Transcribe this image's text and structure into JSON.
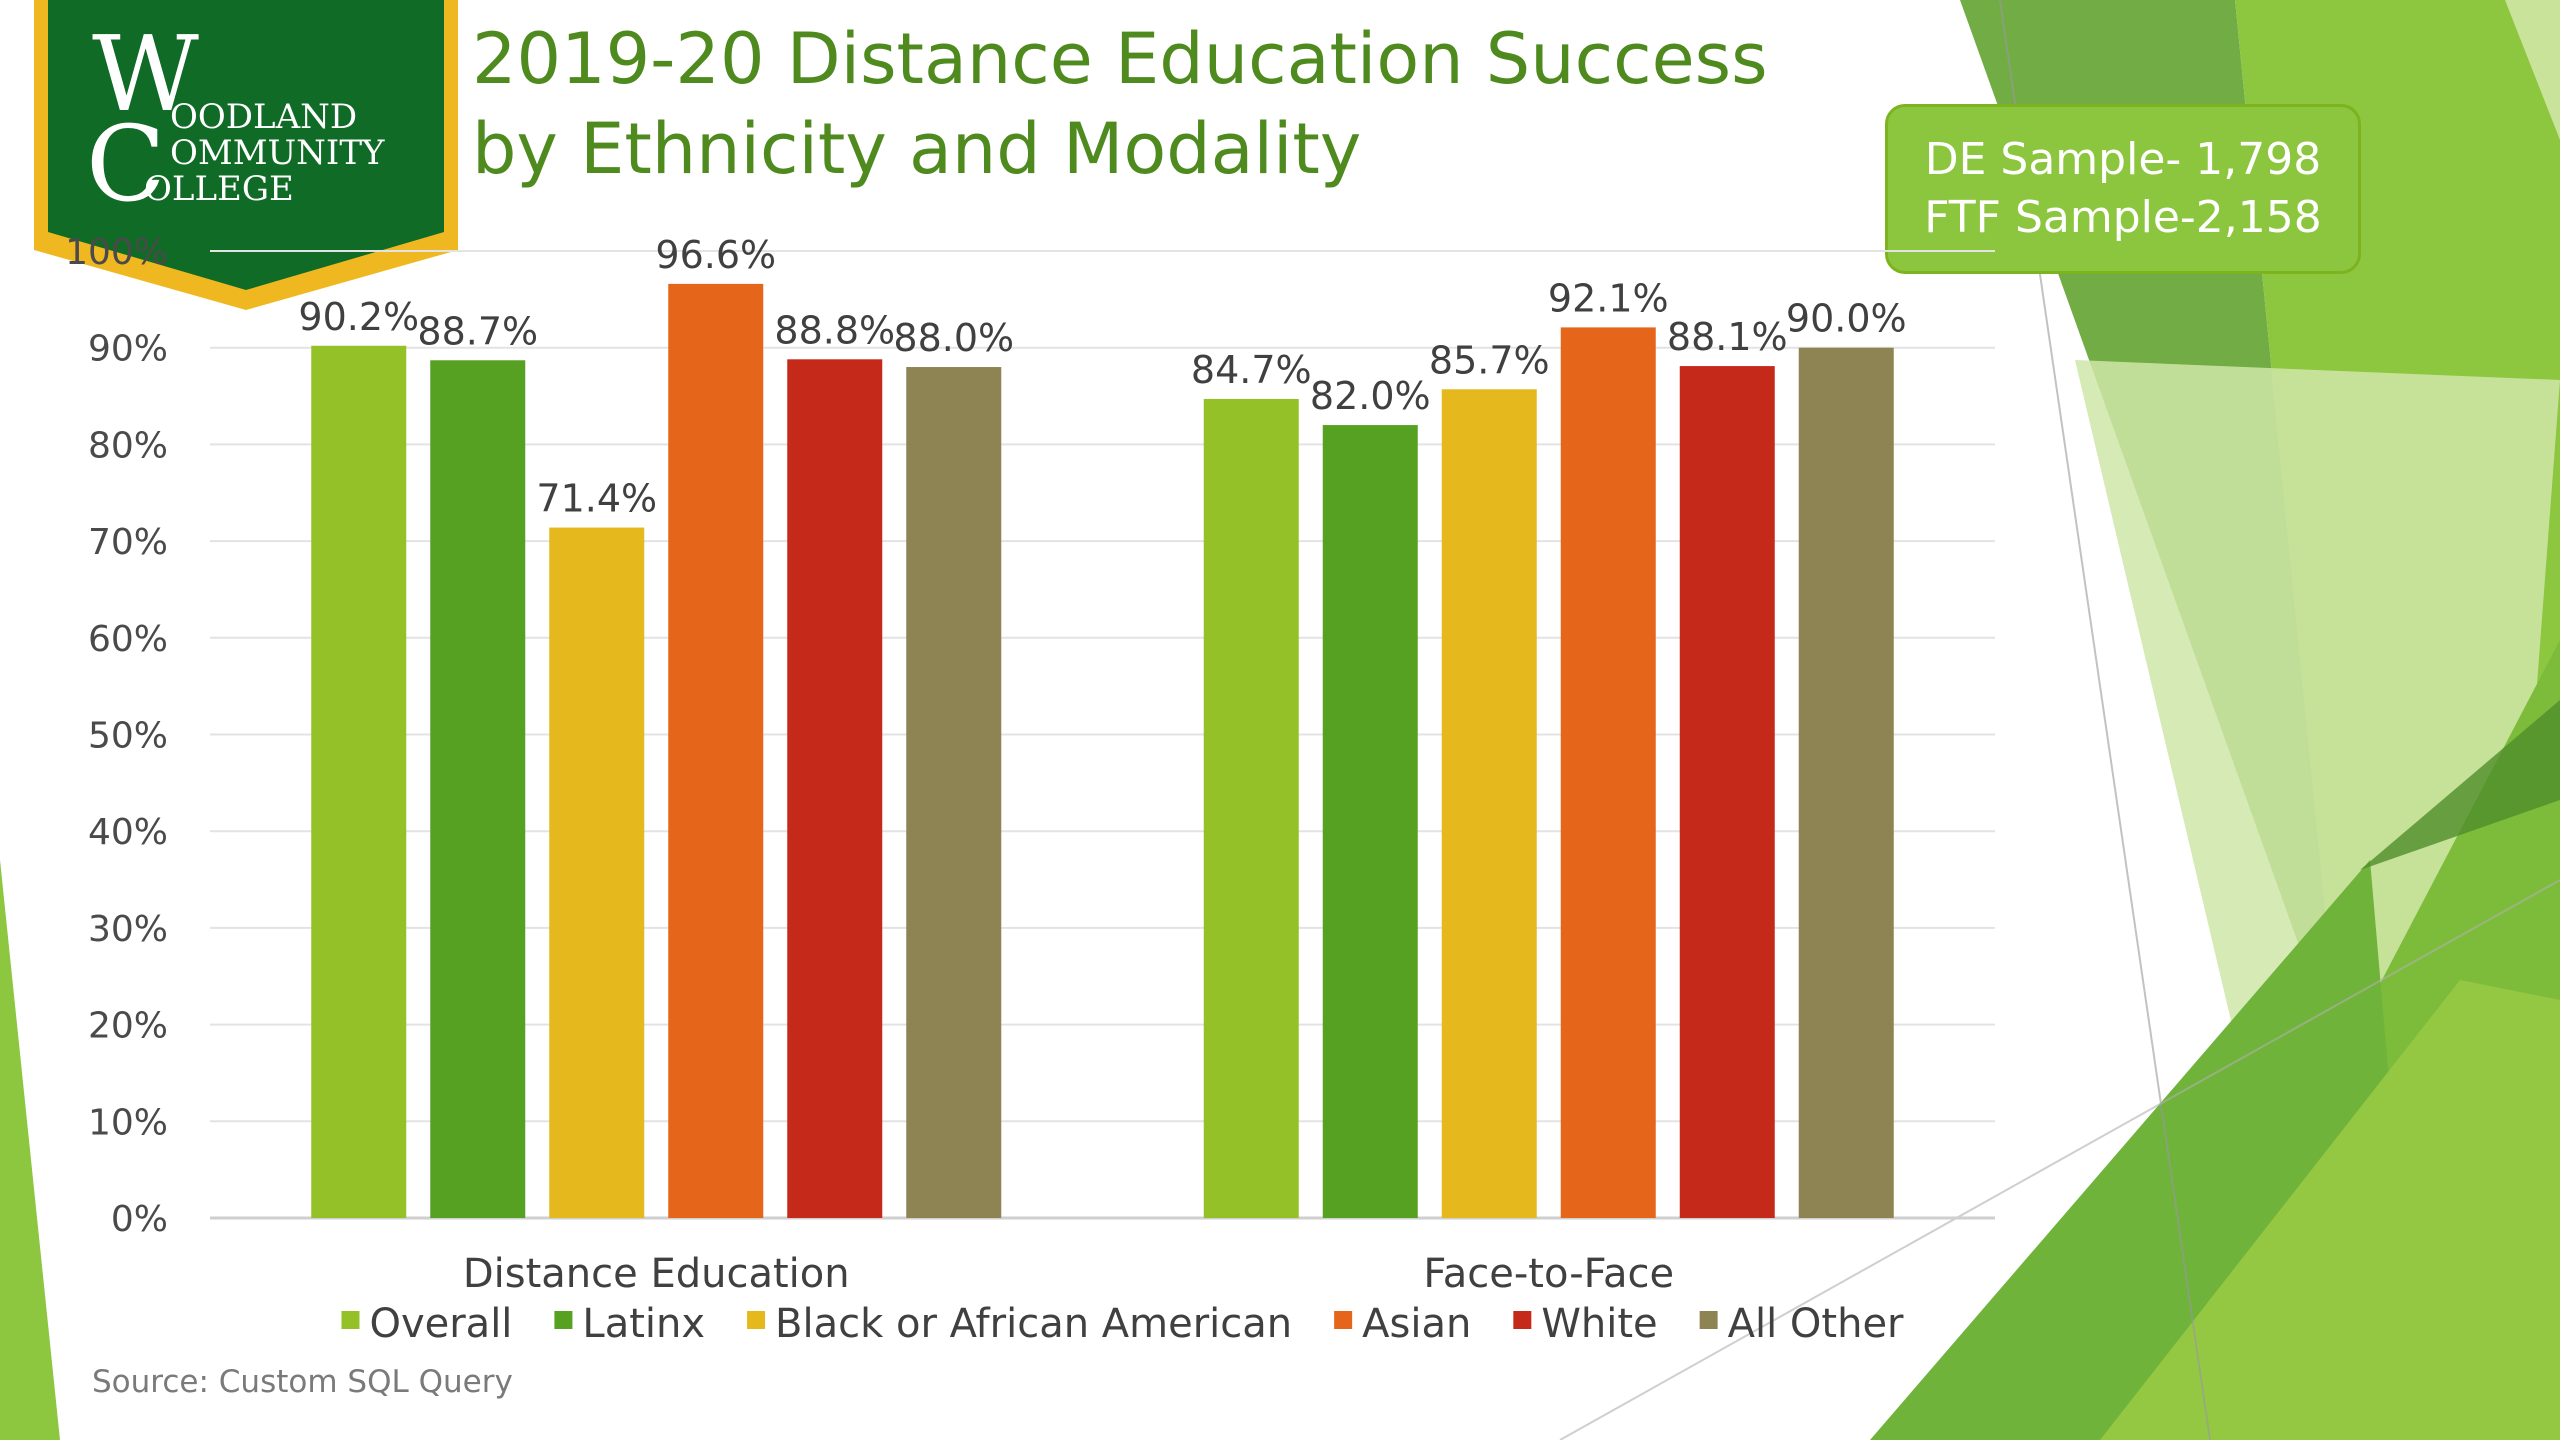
{
  "title": {
    "line1": "2019-20 Distance Education Success",
    "line2": "by Ethnicity and Modality"
  },
  "logo": {
    "line1": "OODLAND",
    "line2": "OMMUNITY",
    "line3": "OLLEGE"
  },
  "sample_box": {
    "line1": "DE Sample- 1,798",
    "line2": "FTF Sample-2,158"
  },
  "source": "Source: Custom SQL Query",
  "colors": {
    "title": "#4f8a1f",
    "logo_green": "#0f6b26",
    "logo_gold": "#f0b820",
    "box_fill": "#8cc63f"
  },
  "chart_data": {
    "type": "bar",
    "categories": [
      "Distance Education",
      "Face-to-Face"
    ],
    "series": [
      {
        "name": "Overall",
        "color": "#93c127",
        "values": [
          90.2,
          84.7
        ]
      },
      {
        "name": "Latinx",
        "color": "#56a022",
        "values": [
          88.7,
          82.0
        ]
      },
      {
        "name": "Black or African American",
        "color": "#e5b81e",
        "values": [
          71.4,
          85.7
        ]
      },
      {
        "name": "Asian",
        "color": "#e5661a",
        "values": [
          96.6,
          92.1
        ]
      },
      {
        "name": "White",
        "color": "#c5291a",
        "values": [
          88.8,
          88.1
        ]
      },
      {
        "name": "All Other",
        "color": "#8e8353",
        "values": [
          88.0,
          90.0
        ]
      }
    ],
    "data_labels": [
      [
        "90.2%",
        "84.7%"
      ],
      [
        "88.7%",
        "82.0%"
      ],
      [
        "71.4%",
        "85.7%"
      ],
      [
        "96.6%",
        "92.1%"
      ],
      [
        "88.8%",
        "88.1%"
      ],
      [
        "88.0%",
        "90.0%"
      ]
    ],
    "ylim": [
      0,
      100
    ],
    "yticks": [
      0,
      10,
      20,
      30,
      40,
      50,
      60,
      70,
      80,
      90,
      100
    ],
    "ytick_labels": [
      "0%",
      "10%",
      "20%",
      "30%",
      "40%",
      "50%",
      "60%",
      "70%",
      "80%",
      "90%",
      "100%"
    ],
    "grid": true,
    "legend": "bottom"
  }
}
